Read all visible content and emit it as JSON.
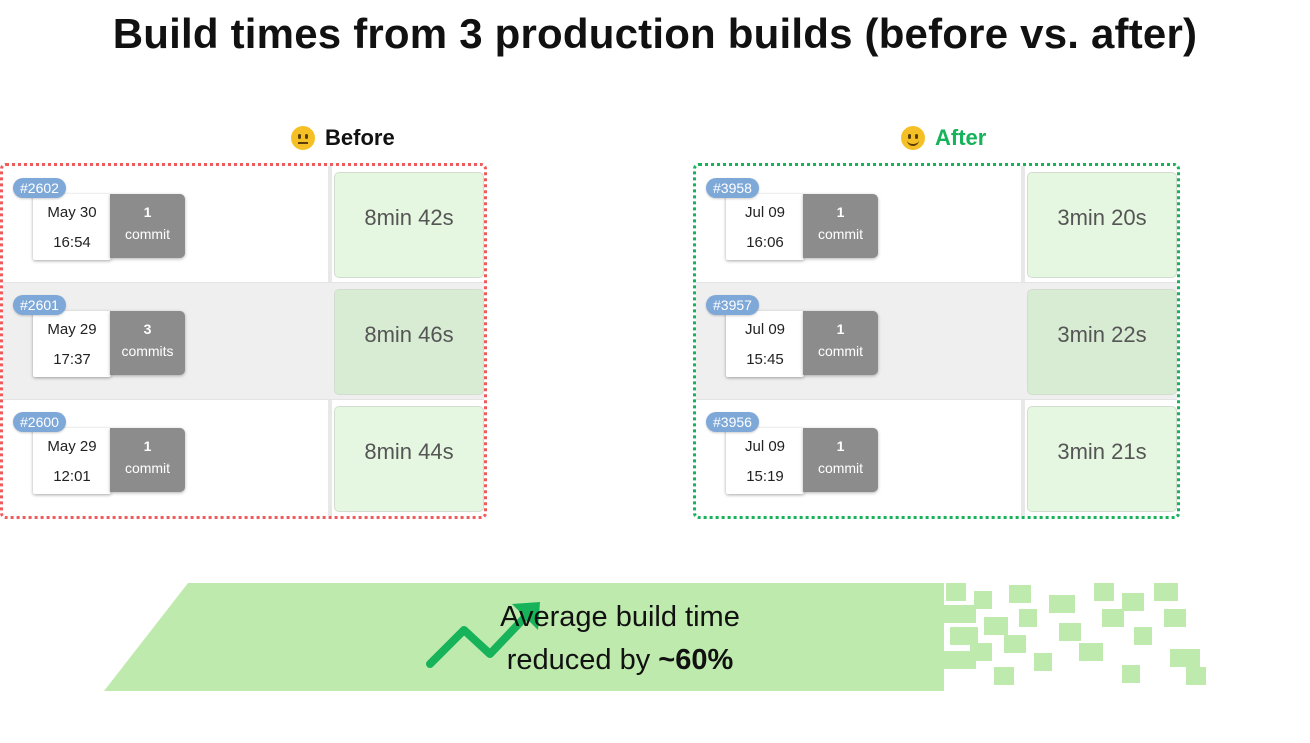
{
  "title": "Build times from 3 production builds (before vs. after)",
  "before": {
    "label": "Before",
    "icon": "neutral-face-icon",
    "label_color": "#111111",
    "border_color": "#ef5b5b",
    "builds": [
      {
        "id": "#2602",
        "date": "May 30",
        "time": "16:54",
        "commits_count": "1",
        "commits_label": "commit",
        "duration": "8min 42s"
      },
      {
        "id": "#2601",
        "date": "May 29",
        "time": "17:37",
        "commits_count": "3",
        "commits_label": "commits",
        "duration": "8min 46s"
      },
      {
        "id": "#2600",
        "date": "May 29",
        "time": "12:01",
        "commits_count": "1",
        "commits_label": "commit",
        "duration": "8min 44s"
      }
    ]
  },
  "after": {
    "label": "After",
    "icon": "smiling-face-icon",
    "label_color": "#16b35a",
    "border_color": "#16b35a",
    "builds": [
      {
        "id": "#3958",
        "date": "Jul 09",
        "time": "16:06",
        "commits_count": "1",
        "commits_label": "commit",
        "duration": "3min 20s"
      },
      {
        "id": "#3957",
        "date": "Jul 09",
        "time": "15:45",
        "commits_count": "1",
        "commits_label": "commit",
        "duration": "3min 22s"
      },
      {
        "id": "#3956",
        "date": "Jul 09",
        "time": "15:19",
        "commits_count": "1",
        "commits_label": "commit",
        "duration": "3min 21s"
      }
    ]
  },
  "summary": {
    "line1": "Average build time",
    "line2_prefix": "reduced by ",
    "highlight": "~60%",
    "icon": "trending-up-icon",
    "banner_color": "#bfeaad",
    "accent": "#16b35a"
  }
}
